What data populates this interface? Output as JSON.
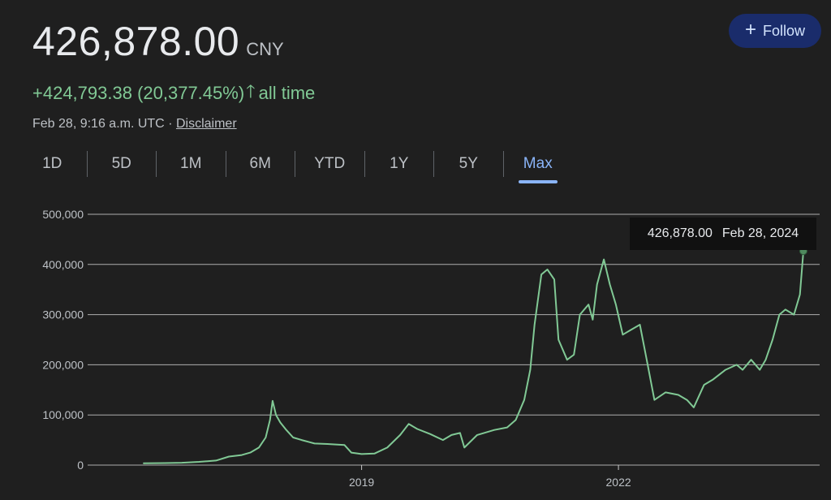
{
  "header": {
    "price": "426,878.00",
    "currency": "CNY",
    "change": "+424,793.38 (20,377.45%)",
    "change_arrow": "🡑",
    "change_period": "all time",
    "timestamp": "Feb 28, 9:16 a.m. UTC",
    "separator": "·",
    "disclaimer": "Disclaimer"
  },
  "follow_button": {
    "icon": "plus-icon",
    "label": "Follow"
  },
  "ranges": [
    "1D",
    "5D",
    "1M",
    "6M",
    "YTD",
    "1Y",
    "5Y",
    "Max"
  ],
  "active_range": "Max",
  "tooltip": {
    "value": "426,878.00",
    "date": "Feb 28, 2024"
  },
  "colors": {
    "background": "#1f1f1f",
    "line": "#81c995",
    "grid": "#c8c8c8",
    "accent": "#8ab4f8",
    "follow_bg": "#1a2c6b"
  },
  "chart_data": {
    "type": "line",
    "ylim": [
      0,
      500000
    ],
    "yticks": [
      0,
      100000,
      200000,
      300000,
      400000,
      500000
    ],
    "ytick_labels": [
      "0",
      "100,000",
      "200,000",
      "300,000",
      "400,000",
      "500,000"
    ],
    "xtick_labels": [
      {
        "label": "2019",
        "x": 2019.0
      },
      {
        "label": "2022",
        "x": 2022.0
      }
    ],
    "xlim": [
      2015.8,
      2024.35
    ],
    "grid": true,
    "series": [
      {
        "values": [
          [
            2016.45,
            3500
          ],
          [
            2016.7,
            4000
          ],
          [
            2016.9,
            4700
          ],
          [
            2017.1,
            6500
          ],
          [
            2017.3,
            9000
          ],
          [
            2017.45,
            17000
          ],
          [
            2017.6,
            20000
          ],
          [
            2017.7,
            25000
          ],
          [
            2017.8,
            35000
          ],
          [
            2017.88,
            55000
          ],
          [
            2017.93,
            90000
          ],
          [
            2017.96,
            128000
          ],
          [
            2018.0,
            100000
          ],
          [
            2018.05,
            85000
          ],
          [
            2018.12,
            70000
          ],
          [
            2018.2,
            55000
          ],
          [
            2018.3,
            50000
          ],
          [
            2018.45,
            43000
          ],
          [
            2018.6,
            42000
          ],
          [
            2018.8,
            40000
          ],
          [
            2018.88,
            25000
          ],
          [
            2019.0,
            22000
          ],
          [
            2019.15,
            23000
          ],
          [
            2019.3,
            35000
          ],
          [
            2019.45,
            60000
          ],
          [
            2019.55,
            82000
          ],
          [
            2019.65,
            72000
          ],
          [
            2019.8,
            62000
          ],
          [
            2019.95,
            50000
          ],
          [
            2020.05,
            60000
          ],
          [
            2020.15,
            64000
          ],
          [
            2020.2,
            35000
          ],
          [
            2020.35,
            60000
          ],
          [
            2020.55,
            70000
          ],
          [
            2020.7,
            75000
          ],
          [
            2020.8,
            90000
          ],
          [
            2020.9,
            130000
          ],
          [
            2020.97,
            190000
          ],
          [
            2021.02,
            280000
          ],
          [
            2021.1,
            380000
          ],
          [
            2021.17,
            390000
          ],
          [
            2021.25,
            370000
          ],
          [
            2021.3,
            250000
          ],
          [
            2021.4,
            210000
          ],
          [
            2021.48,
            220000
          ],
          [
            2021.55,
            300000
          ],
          [
            2021.65,
            320000
          ],
          [
            2021.7,
            290000
          ],
          [
            2021.75,
            360000
          ],
          [
            2021.83,
            410000
          ],
          [
            2021.9,
            360000
          ],
          [
            2021.97,
            320000
          ],
          [
            2022.05,
            260000
          ],
          [
            2022.15,
            270000
          ],
          [
            2022.25,
            280000
          ],
          [
            2022.33,
            210000
          ],
          [
            2022.42,
            130000
          ],
          [
            2022.55,
            145000
          ],
          [
            2022.7,
            140000
          ],
          [
            2022.8,
            130000
          ],
          [
            2022.88,
            115000
          ],
          [
            2023.0,
            160000
          ],
          [
            2023.1,
            170000
          ],
          [
            2023.25,
            190000
          ],
          [
            2023.38,
            200000
          ],
          [
            2023.45,
            190000
          ],
          [
            2023.55,
            210000
          ],
          [
            2023.65,
            190000
          ],
          [
            2023.72,
            210000
          ],
          [
            2023.8,
            250000
          ],
          [
            2023.88,
            300000
          ],
          [
            2023.95,
            310000
          ],
          [
            2024.05,
            300000
          ],
          [
            2024.12,
            340000
          ],
          [
            2024.16,
            426878
          ]
        ]
      }
    ]
  }
}
